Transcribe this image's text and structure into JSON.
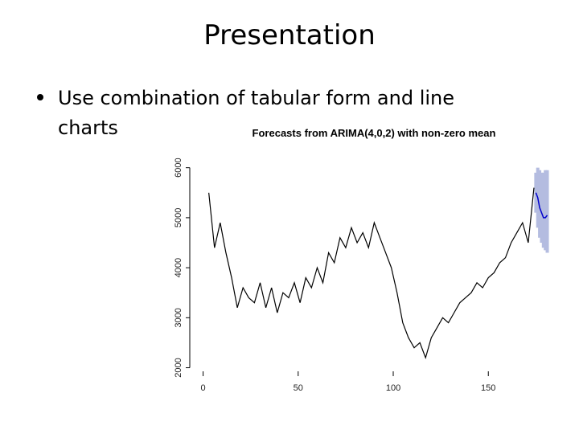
{
  "slide": {
    "title": "Presentation",
    "bullet": [
      "Use combination of tabular form and line",
      "charts"
    ]
  },
  "chart_data": {
    "type": "line",
    "title": "Forecasts from ARIMA(4,0,2) with non-zero mean",
    "x": [
      3,
      6,
      9,
      12,
      15,
      18,
      21,
      24,
      27,
      30,
      33,
      36,
      39,
      42,
      45,
      48,
      51,
      54,
      57,
      60,
      63,
      66,
      69,
      72,
      75,
      78,
      81,
      84,
      87,
      90,
      93,
      96,
      99,
      102,
      105,
      108,
      111,
      114,
      117,
      120,
      123,
      126,
      129,
      132,
      135,
      138,
      141,
      144,
      147,
      150,
      153,
      156,
      159,
      162,
      165,
      168,
      171,
      174
    ],
    "values": [
      5500,
      4400,
      4900,
      4300,
      3800,
      3200,
      3600,
      3400,
      3300,
      3700,
      3200,
      3600,
      3100,
      3500,
      3400,
      3700,
      3300,
      3800,
      3600,
      4000,
      3700,
      4300,
      4100,
      4600,
      4400,
      4800,
      4500,
      4700,
      4400,
      4900,
      4600,
      4300,
      4000,
      3500,
      2900,
      2600,
      2400,
      2500,
      2200,
      2600,
      2800,
      3000,
      2900,
      3100,
      3300,
      3400,
      3500,
      3700,
      3600,
      3800,
      3900,
      4100,
      4200,
      4500,
      4700,
      4900,
      4500,
      5600
    ],
    "color": "#000000",
    "forecast": {
      "x": [
        175,
        176,
        177,
        178,
        179,
        180,
        181
      ],
      "values": [
        5500,
        5400,
        5200,
        5100,
        5000,
        5000,
        5050
      ],
      "lower": [
        5100,
        4800,
        4600,
        4500,
        4400,
        4350,
        4300
      ],
      "upper": [
        5900,
        6000,
        5950,
        5900,
        5900,
        5950,
        5950
      ],
      "color": "#0000cc",
      "band_color": "#b4bce0"
    },
    "xlim": [
      -7,
      185
    ],
    "ylim": [
      1800,
      6300
    ],
    "xticks": [
      0,
      50,
      100,
      150
    ],
    "yticks": [
      2000,
      3000,
      4000,
      5000,
      6000
    ]
  }
}
